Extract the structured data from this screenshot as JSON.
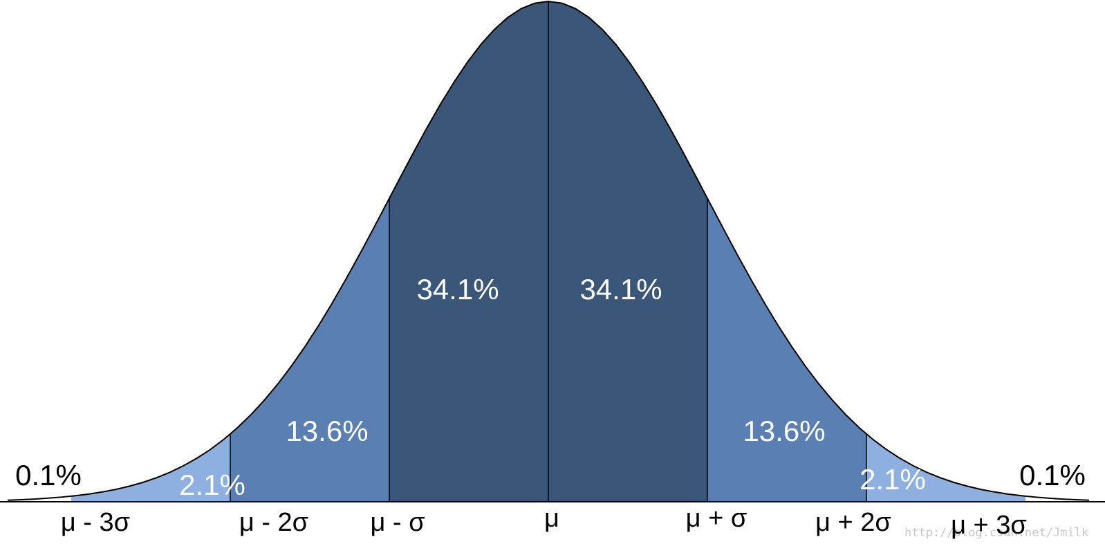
{
  "diagram": {
    "colors": {
      "dark": "#3a5679",
      "medium": "#5a80b3",
      "light": "#8eb0e0",
      "outline": "#000000"
    },
    "regions": [
      {
        "from": -3,
        "to": -2,
        "label": "2.1%",
        "shade": "light"
      },
      {
        "from": -2,
        "to": -1,
        "label": "13.6%",
        "shade": "medium"
      },
      {
        "from": -1,
        "to": 0,
        "label": "34.1%",
        "shade": "dark"
      },
      {
        "from": 0,
        "to": 1,
        "label": "34.1%",
        "shade": "dark"
      },
      {
        "from": 1,
        "to": 2,
        "label": "13.6%",
        "shade": "medium"
      },
      {
        "from": 2,
        "to": 3,
        "label": "2.1%",
        "shade": "light"
      }
    ],
    "tail_labels": {
      "left": "0.1%",
      "right": "0.1%"
    },
    "axis_labels": [
      "μ - 3σ",
      "μ - 2σ",
      "μ - σ",
      "μ",
      "μ + σ",
      "μ + 2σ",
      "μ + 3σ"
    ],
    "watermark": "http://blog.csdn.net/Jmilk"
  }
}
